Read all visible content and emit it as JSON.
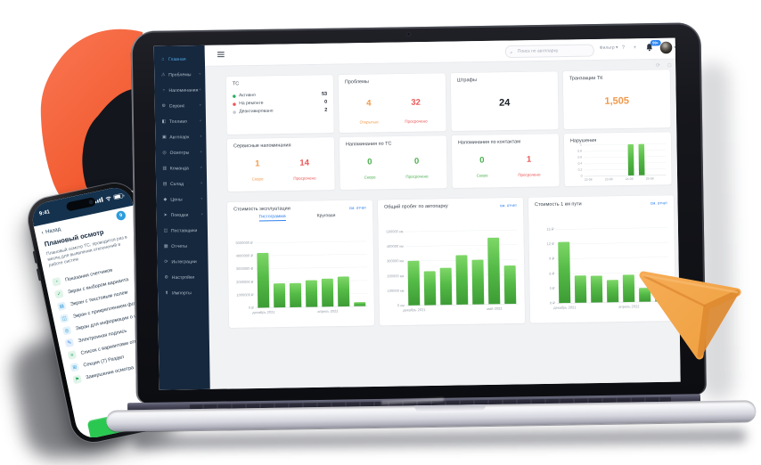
{
  "colors": {
    "accent_blue": "#2F80ED",
    "sidebar_navy": "#16283E",
    "active_blue": "#4FA8E8",
    "orange": "#F2994A",
    "red": "#EB5757",
    "green": "#4CAF50",
    "bar_green": "#55BB47",
    "donut_orange": "#F7673F",
    "plane_orange": "#F5A04A"
  },
  "sidebar": {
    "items": [
      {
        "label": "Главная",
        "icon": "home-icon",
        "glyph": "⌂",
        "active": true,
        "chevron": false
      },
      {
        "label": "Проблемы",
        "icon": "warning-icon",
        "glyph": "⚠",
        "active": false,
        "chevron": true
      },
      {
        "label": "Напоминания",
        "icon": "bell-icon",
        "glyph": "◔",
        "active": false,
        "chevron": true
      },
      {
        "label": "Сервис",
        "icon": "service-icon",
        "glyph": "⚙",
        "active": false,
        "chevron": true
      },
      {
        "label": "Топливо",
        "icon": "fuel-icon",
        "glyph": "◧",
        "active": false,
        "chevron": true
      },
      {
        "label": "Автопарк",
        "icon": "fleet-icon",
        "glyph": "▣",
        "active": false,
        "chevron": true
      },
      {
        "label": "Осмотры",
        "icon": "inspection-icon",
        "glyph": "◎",
        "active": false,
        "chevron": true
      },
      {
        "label": "Команда",
        "icon": "team-icon",
        "glyph": "▥",
        "active": false,
        "chevron": true
      },
      {
        "label": "Склад",
        "icon": "warehouse-icon",
        "glyph": "▤",
        "active": false,
        "chevron": true
      },
      {
        "label": "Цены",
        "icon": "price-icon",
        "glyph": "◆",
        "active": false,
        "chevron": true
      },
      {
        "label": "Поездки",
        "icon": "trips-icon",
        "glyph": "➤",
        "active": false,
        "chevron": true
      },
      {
        "label": "Поставщики",
        "icon": "suppliers-icon",
        "glyph": "◫",
        "active": false,
        "chevron": false
      },
      {
        "label": "Отчеты",
        "icon": "reports-icon",
        "glyph": "▦",
        "active": false,
        "chevron": false
      },
      {
        "label": "Интеграции",
        "icon": "integrations-icon",
        "glyph": "⟳",
        "active": false,
        "chevron": false
      },
      {
        "label": "Настройки",
        "icon": "settings-icon",
        "glyph": "⚙",
        "active": false,
        "chevron": false
      },
      {
        "label": "Импорты",
        "icon": "imports-icon",
        "glyph": "⬆",
        "active": false,
        "chevron": false
      }
    ]
  },
  "toolbar": {
    "search_placeholder": "Поиск по автопарку",
    "dropdown_label": "Фильтр",
    "badge": "99+"
  },
  "stat_cards_row1": [
    {
      "title": "ТС",
      "type": "list",
      "rows": [
        {
          "dot": "#27AE60",
          "label": "Активно",
          "value": "53"
        },
        {
          "dot": "#EB5757",
          "label": "На ремонте",
          "value": "0"
        },
        {
          "dot": "#C4C9D1",
          "label": "Деактивировано",
          "value": "2"
        }
      ]
    },
    {
      "title": "Проблемы",
      "type": "pair",
      "pair": [
        {
          "value": "4",
          "label": "Открытые",
          "color": "#F2994A"
        },
        {
          "value": "32",
          "label": "Просрочено",
          "color": "#EB5757"
        }
      ]
    },
    {
      "title": "Штрафы",
      "type": "single",
      "value": "24",
      "color": "#1A1F26"
    },
    {
      "title": "Транзакции ТК",
      "type": "single",
      "value": "1,505",
      "color": "#F2994A"
    }
  ],
  "stat_cards_row2": [
    {
      "title": "Сервисные напоминания",
      "type": "pair",
      "pair": [
        {
          "value": "1",
          "label": "Скоро",
          "color": "#F2994A"
        },
        {
          "value": "14",
          "label": "Просрочено",
          "color": "#EB5757"
        }
      ]
    },
    {
      "title": "Напоминания по ТС",
      "type": "pair",
      "pair": [
        {
          "value": "0",
          "label": "Скоро",
          "color": "#4CAF50"
        },
        {
          "value": "0",
          "label": "Просрочено",
          "color": "#4CAF50"
        }
      ]
    },
    {
      "title": "Напоминания по контактам",
      "type": "pair",
      "pair": [
        {
          "value": "0",
          "label": "Скоро",
          "color": "#4CAF50"
        },
        {
          "value": "1",
          "label": "Просрочено",
          "color": "#EB5757"
        }
      ]
    },
    {
      "title": "Нарушения",
      "type": "minichart"
    }
  ],
  "chart_data": [
    {
      "type": "bar",
      "title": "Нарушения",
      "x": [
        "22-06",
        "23-06",
        "24-06",
        "25-06"
      ],
      "bars": [
        {
          "x": 0.57,
          "v": 1
        },
        {
          "x": 0.7,
          "v": 1
        }
      ],
      "ylim": [
        0,
        1
      ],
      "yticks": [
        "1",
        "0.8",
        "0.6",
        "0.4",
        "0.2",
        "0"
      ],
      "grid": true,
      "legend": false
    },
    {
      "type": "bar",
      "title": "Стоимость эксплуатации",
      "link": "см. отчет",
      "tabs": [
        {
          "label": "Гистограмма",
          "active": true
        },
        {
          "label": "Круговая",
          "active": false
        }
      ],
      "values": [
        4200000,
        1850000,
        1850000,
        2050000,
        2150000,
        2300000,
        300000
      ],
      "ylim": [
        0,
        5000000
      ],
      "yticks": [
        "5000000 ₽",
        "4000000 ₽",
        "3000000 ₽",
        "2000000 ₽",
        "1000000 ₽",
        "0 ₽"
      ],
      "xlabels": [
        {
          "text": "декабрь 2021",
          "bar": 0
        },
        {
          "text": "апрель 2022",
          "bar": 4
        }
      ],
      "grid": true,
      "legend": false
    },
    {
      "type": "bar",
      "title": "Общий пробег по автопарку",
      "link": "см. отчет",
      "values": [
        300000,
        230000,
        250000,
        335000,
        300000,
        450000,
        260000
      ],
      "ylim": [
        0,
        500000
      ],
      "yticks": [
        "500000 км",
        "400000 км",
        "300000 км",
        "200000 км",
        "100000 км",
        "0 км"
      ],
      "xlabels": [
        {
          "text": "декабрь 2021",
          "bar": 0
        },
        {
          "text": "май 2022",
          "bar": 5
        }
      ],
      "grid": true,
      "legend": false
    },
    {
      "type": "bar",
      "title": "Стоимость 1 км пути",
      "link": "см. отчет",
      "values": [
        12.4,
        5.5,
        5.4,
        4.5,
        5.5,
        2.8,
        0.7
      ],
      "ylim": [
        0,
        15
      ],
      "yticks": [
        "15 ₽",
        "12 ₽",
        "9 ₽",
        "6 ₽",
        "3 ₽",
        "0 ₽"
      ],
      "xlabels": [
        {
          "text": "декабрь 2021",
          "bar": 0
        },
        {
          "text": "апрель 2022",
          "bar": 4
        }
      ],
      "grid": true,
      "legend": false
    }
  ],
  "phone": {
    "time": "9:41",
    "back_label": "Назад",
    "badge": "9",
    "title": "Плановый осмотр",
    "description": "Плановый осмотр ТС, проводится раз в месяц для выявления отклонений в работе систем",
    "items": [
      {
        "label": "Показания счетчиков",
        "icon": "gauge-icon",
        "glyph": "◔",
        "color": "#27AE60"
      },
      {
        "label": "Экран с выбором варианта",
        "icon": "check-icon",
        "glyph": "✓",
        "color": "#27AE60"
      },
      {
        "label": "Экран с текстовым полем",
        "icon": "text-field-icon",
        "glyph": "▤",
        "color": "#2D9CDB"
      },
      {
        "label": "Экран с прикреплением фотографий",
        "icon": "camera-icon",
        "glyph": "◫",
        "color": "#2D9CDB"
      },
      {
        "label": "Экран для информации о шинах",
        "icon": "tire-icon",
        "glyph": "◎",
        "color": "#2D9CDB"
      },
      {
        "label": "Электронная подпись",
        "icon": "signature-icon",
        "glyph": "✎",
        "color": "#2F80ED"
      },
      {
        "label": "Список с вариантами ответов",
        "icon": "list-icon",
        "glyph": "≡",
        "color": "#27AE60"
      },
      {
        "label": "Секция (7) Раздел",
        "icon": "section-icon",
        "glyph": "⊞",
        "color": "#2D9CDB"
      },
      {
        "label": "Завершение осмотра",
        "icon": "flag-icon",
        "glyph": "⚑",
        "color": "#27AE60"
      }
    ]
  }
}
